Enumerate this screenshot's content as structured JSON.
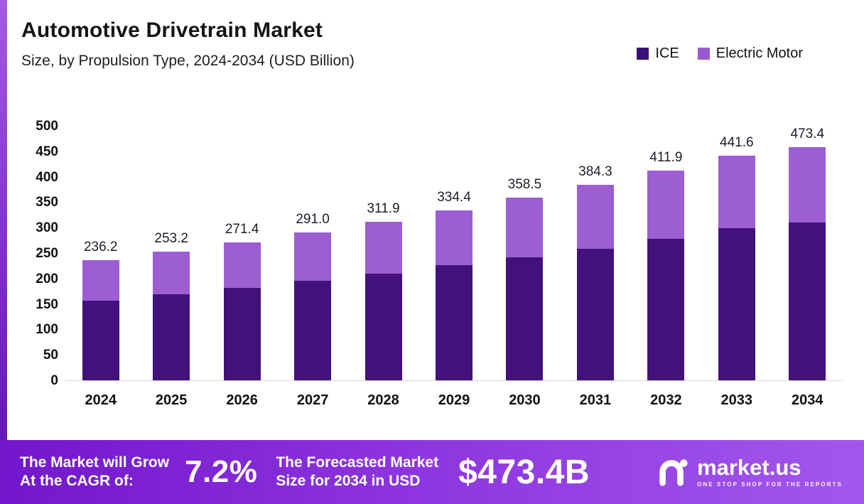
{
  "header": {
    "title": "Automotive Drivetrain Market",
    "subtitle": "Size, by Propulsion Type, 2024-2034 (USD Billion)"
  },
  "legend": {
    "items": [
      {
        "label": "ICE",
        "color": "#3b1076"
      },
      {
        "label": "Electric Motor",
        "color": "#9b59d6"
      }
    ]
  },
  "chart_data": {
    "type": "bar",
    "stacked": true,
    "title": "Automotive Drivetrain Market Size, by Propulsion Type, 2024-2034 (USD Billion)",
    "categories": [
      "2024",
      "2025",
      "2026",
      "2027",
      "2028",
      "2029",
      "2030",
      "2031",
      "2032",
      "2033",
      "2034"
    ],
    "series": [
      {
        "name": "ICE",
        "color": "#42117c",
        "values": [
          157.0,
          169.0,
          182.0,
          196.0,
          210.0,
          226.0,
          242.0,
          258.0,
          278.0,
          299.0,
          320.0
        ]
      },
      {
        "name": "Electric Motor",
        "color": "#9d5dd3",
        "values": [
          79.2,
          84.2,
          89.4,
          95.0,
          101.9,
          108.4,
          116.5,
          126.3,
          133.9,
          142.6,
          153.4
        ]
      }
    ],
    "totals": [
      236.2,
      253.2,
      271.4,
      291.0,
      311.9,
      334.4,
      358.5,
      384.3,
      411.9,
      441.6,
      473.4
    ],
    "xlabel": "",
    "ylabel": "",
    "ylim": [
      0,
      500
    ],
    "yticks": [
      0,
      50,
      100,
      150,
      200,
      250,
      300,
      350,
      400,
      450,
      500
    ],
    "grid": false,
    "legend_position": "top-right"
  },
  "footer": {
    "cagr_label_line1": "The Market will Grow",
    "cagr_label_line2": "At the CAGR of:",
    "cagr_value": "7.2%",
    "forecast_label_line1": "The Forecasted Market",
    "forecast_label_line2": "Size for 2034 in USD",
    "forecast_value": "$473.4B",
    "brand_name": "market.us",
    "brand_tagline": "ONE STOP SHOP FOR THE REPORTS"
  }
}
